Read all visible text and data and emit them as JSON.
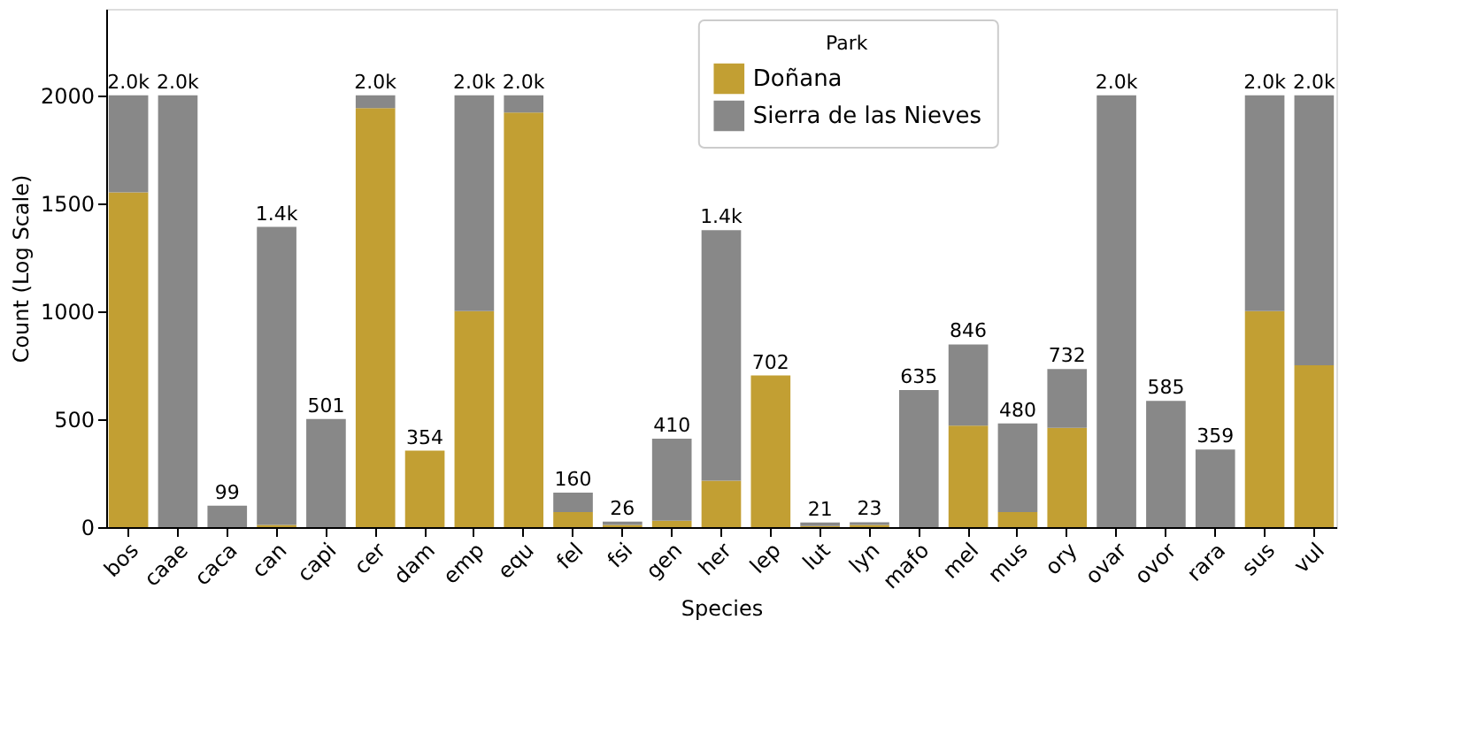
{
  "chart_data": {
    "type": "bar",
    "stacked": true,
    "xlabel": "Species",
    "ylabel": "Count (Log Scale)",
    "legend_title": "Park",
    "legend": "top right",
    "categories": [
      "bos",
      "caae",
      "caca",
      "can",
      "capi",
      "cer",
      "dam",
      "emp",
      "equ",
      "fel",
      "fsi",
      "gen",
      "her",
      "lep",
      "lut",
      "lyn",
      "mafo",
      "mel",
      "mus",
      "ory",
      "ovar",
      "ovor",
      "rara",
      "sus",
      "vul"
    ],
    "series": [
      {
        "name": "Doñana",
        "color": "#c29f33",
        "values": [
          1550,
          0,
          0,
          10,
          0,
          1940,
          354,
          1000,
          1920,
          70,
          10,
          30,
          215,
          702,
          5,
          10,
          0,
          470,
          70,
          460,
          0,
          0,
          0,
          1000,
          750
        ]
      },
      {
        "name": "Sierra de las Nieves",
        "color": "#888888",
        "values": [
          450,
          2000,
          99,
          1380,
          501,
          60,
          0,
          1000,
          80,
          90,
          16,
          380,
          1160,
          0,
          16,
          13,
          635,
          376,
          410,
          272,
          2000,
          585,
          359,
          1000,
          1250
        ]
      }
    ],
    "totals": [
      "2.0k",
      "2.0k",
      "99",
      "1.4k",
      "501",
      "2.0k",
      "354",
      "2.0k",
      "2.0k",
      "160",
      "26",
      "410",
      "1.4k",
      "702",
      "21",
      "23",
      "635",
      "846",
      "480",
      "732",
      "2.0k",
      "585",
      "359",
      "2.0k",
      "2.0k"
    ],
    "ylim": [
      0,
      2400
    ],
    "yticks": [
      0,
      500,
      1000,
      1500,
      2000
    ],
    "grid": false
  }
}
